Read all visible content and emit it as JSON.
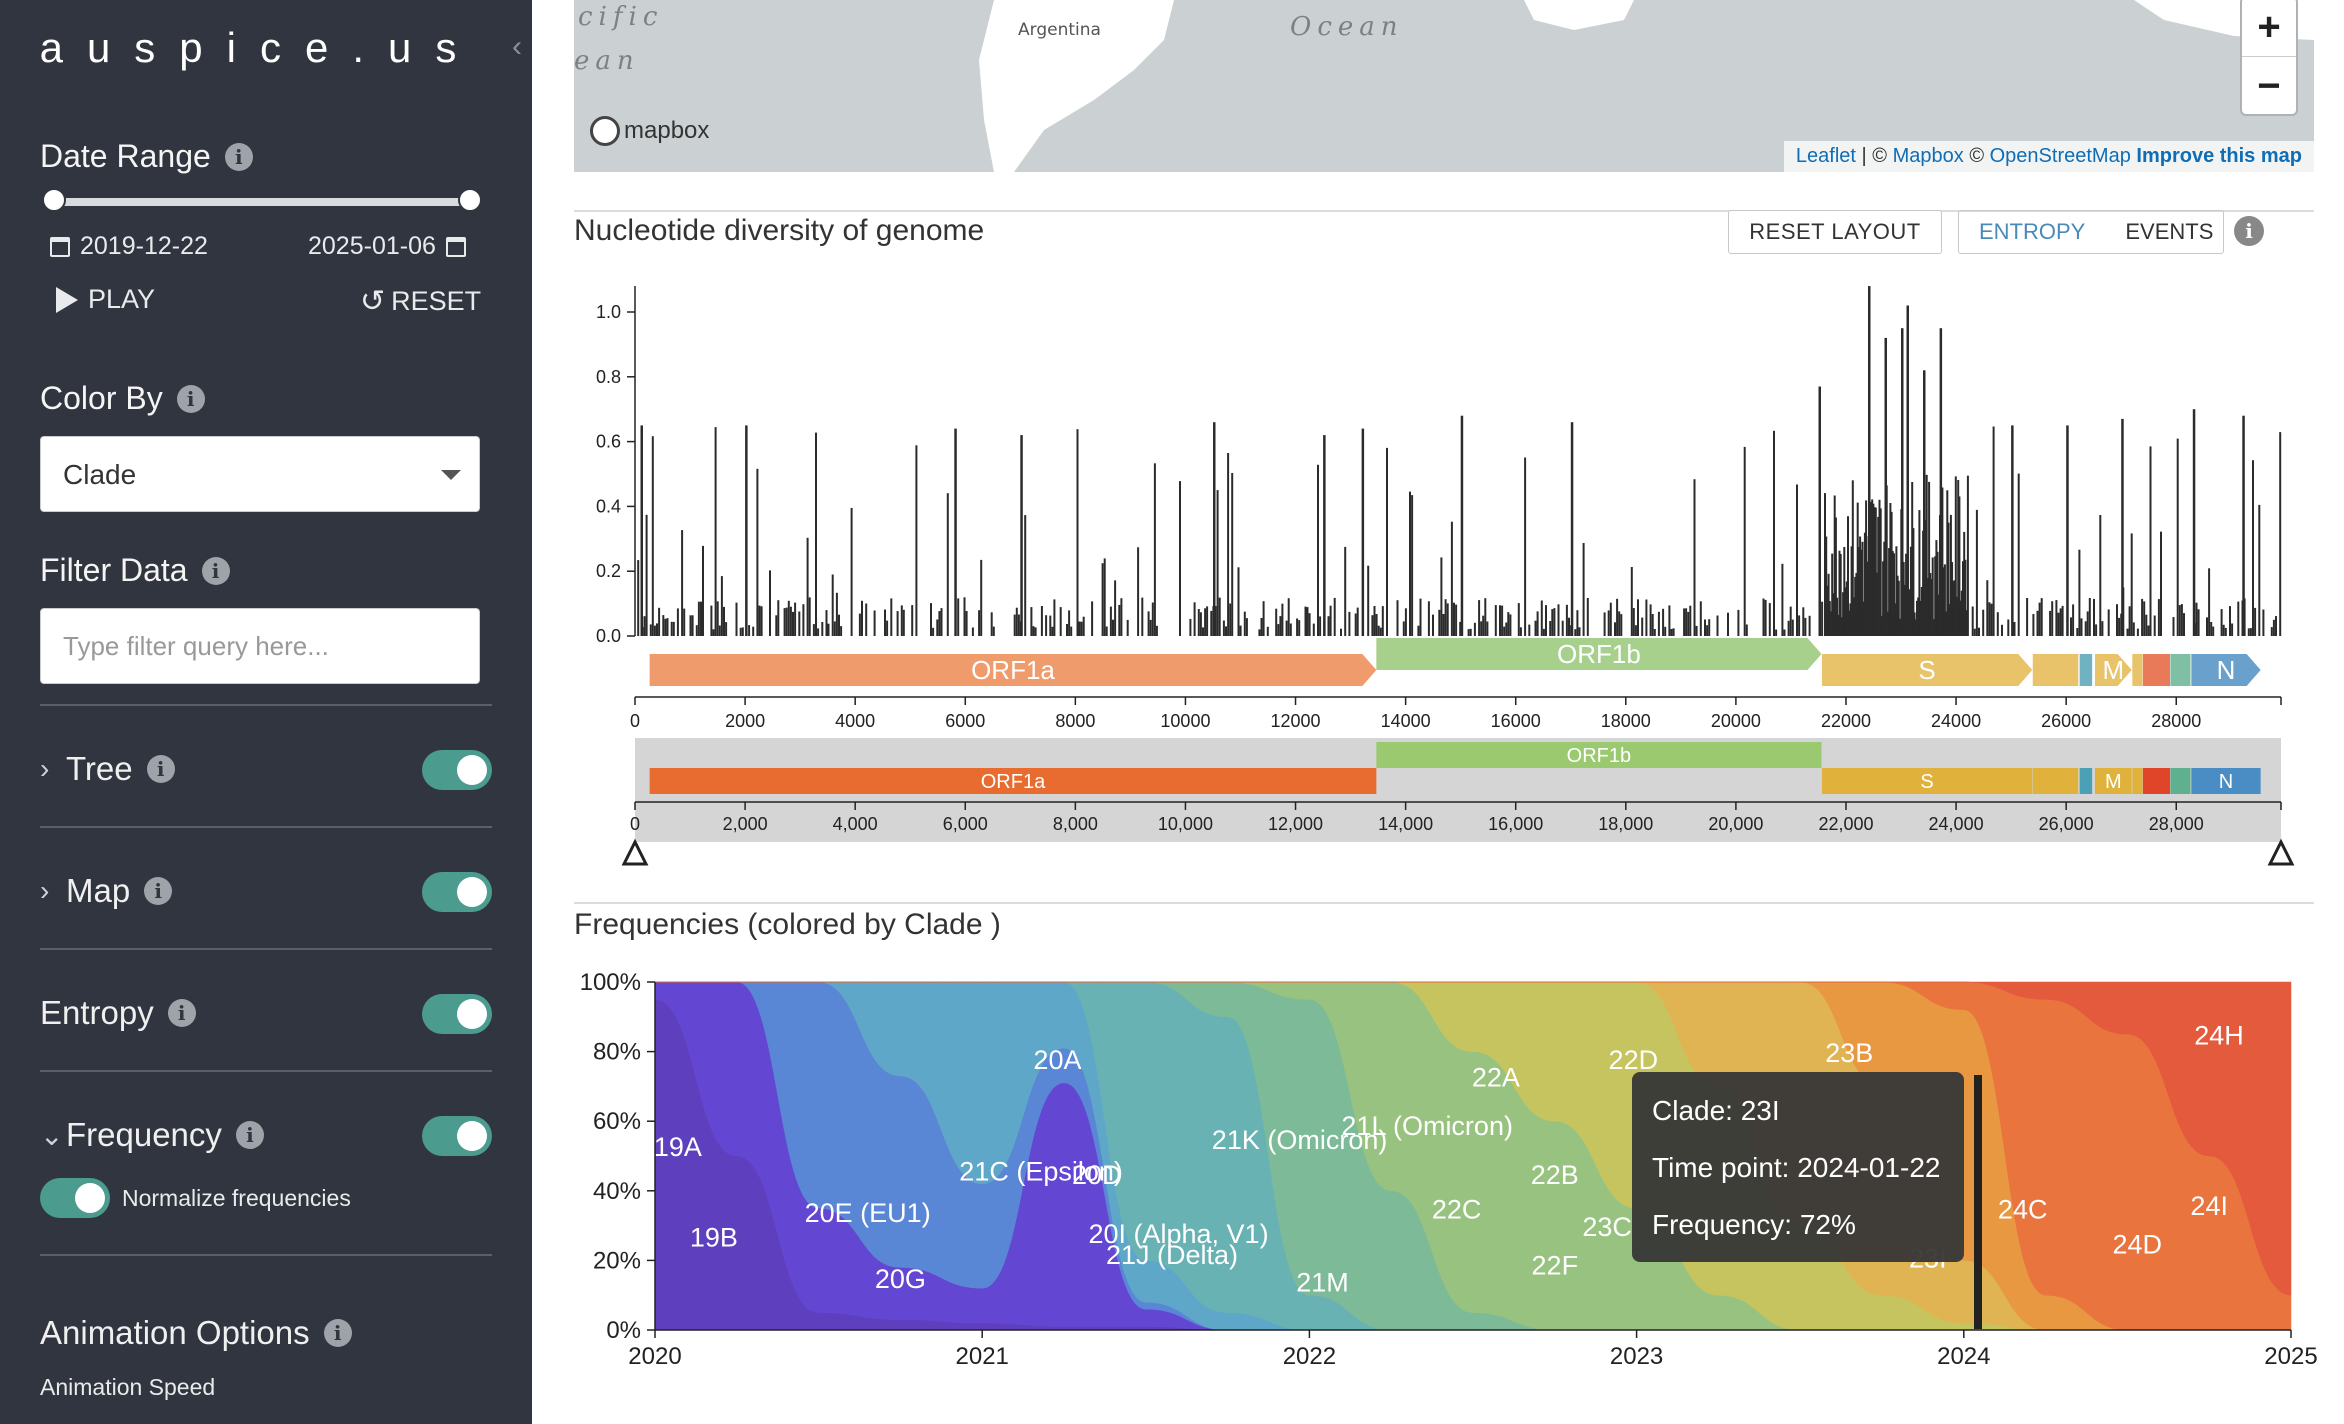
{
  "sidebar": {
    "title": "auspice.us",
    "date_range": {
      "label": "Date Range",
      "start": "2019-12-22",
      "end": "2025-01-06",
      "play_label": "PLAY",
      "reset_label": "RESET"
    },
    "color_by": {
      "label": "Color By",
      "selected": "Clade"
    },
    "filter": {
      "label": "Filter Data",
      "placeholder": "Type filter query here..."
    },
    "panels": [
      {
        "label": "Tree",
        "expanded": false,
        "enabled": true
      },
      {
        "label": "Map",
        "expanded": false,
        "enabled": true
      },
      {
        "label": "Entropy",
        "expanded": false,
        "enabled": true
      },
      {
        "label": "Frequency",
        "expanded": true,
        "enabled": true
      }
    ],
    "normalize_label": "Normalize frequencies",
    "animation": {
      "label": "Animation Options",
      "speed_label": "Animation Speed"
    }
  },
  "map": {
    "labels": {
      "ocean_left_1": "cific",
      "ocean_left_2": "ean",
      "ocean": "Ocean",
      "country": "Argentina"
    },
    "zoom_in": "+",
    "zoom_out": "−",
    "logo": "mapbox",
    "attribution": {
      "leaflet": "Leaflet",
      "sep": "| ©",
      "mapbox": "Mapbox",
      "osm_prefix": "©",
      "osm": "OpenStreetMap",
      "improve": "Improve this map"
    }
  },
  "entropy": {
    "title": "Nucleotide diversity of genome",
    "reset_layout": "RESET LAYOUT",
    "entropy_btn": "ENTROPY",
    "events_btn": "EVENTS",
    "y_ticks": [
      "0.0",
      "0.2",
      "0.4",
      "0.6",
      "0.8",
      "1.0"
    ],
    "x_ticks_top": [
      "0",
      "2000",
      "4000",
      "6000",
      "8000",
      "10000",
      "12000",
      "14000",
      "16000",
      "18000",
      "20000",
      "22000",
      "24000",
      "26000",
      "28000"
    ],
    "x_ticks_bottom": [
      "0",
      "2,000",
      "4,000",
      "6,000",
      "8,000",
      "10,000",
      "12,000",
      "14,000",
      "16,000",
      "18,000",
      "20,000",
      "22,000",
      "24,000",
      "26,000",
      "28,000"
    ],
    "genes": [
      {
        "name": "ORF1a",
        "start": 266,
        "end": 13468,
        "color": "#ef9b6b",
        "color_nav": "#e86c2f"
      },
      {
        "name": "ORF1b",
        "start": 13468,
        "end": 21555,
        "color": "#a8d08d",
        "color_nav": "#9bc96f"
      },
      {
        "name": "S",
        "start": 21563,
        "end": 25384,
        "color": "#e8c36a",
        "color_nav": "#e0b23c"
      },
      {
        "name": "M",
        "start": 26523,
        "end": 27191,
        "color": "#e8c36a",
        "color_nav": "#e0b23c"
      },
      {
        "name": "N",
        "start": 28274,
        "end": 29533,
        "color": "#6aa0cc",
        "color_nav": "#4a8cc4"
      }
    ]
  },
  "frequencies": {
    "title": "Frequencies (colored by Clade )",
    "y_ticks": [
      "0%",
      "20%",
      "40%",
      "60%",
      "80%",
      "100%"
    ],
    "x_ticks": [
      "2020",
      "2021",
      "2022",
      "2023",
      "2024",
      "2025"
    ],
    "clade_labels": [
      "19A",
      "19B",
      "20A",
      "20E (EU1)",
      "20G",
      "21C (Epsilon)",
      "20D",
      "20I (Alpha, V1)",
      "21J (Delta)",
      "21K (Omicron)",
      "21L (Omicron)",
      "21M",
      "22A",
      "22B",
      "22C",
      "22D",
      "22F",
      "23B",
      "23C",
      "23I",
      "24C",
      "24D",
      "24H",
      "24I"
    ],
    "tooltip": {
      "clade": "Clade: 23I",
      "time": "Time point: 2024-01-22",
      "freq": "Frequency: 72%"
    }
  },
  "chart_data": [
    {
      "type": "bar",
      "title": "Nucleotide diversity of genome",
      "xlim": [
        0,
        29903
      ],
      "ylim": [
        0,
        1.05
      ],
      "peaks_x": [
        100,
        2000,
        5800,
        7000,
        10500,
        12500,
        13200,
        15000,
        17000,
        21500,
        22400,
        22700,
        23000,
        23100,
        23400,
        23700,
        25000,
        26000,
        27000,
        28300,
        29200
      ],
      "peaks_y": [
        0.65,
        0.65,
        0.64,
        0.62,
        0.66,
        0.62,
        0.64,
        0.68,
        0.66,
        0.77,
        1.08,
        0.92,
        0.95,
        1.02,
        0.82,
        0.95,
        0.65,
        0.65,
        0.67,
        0.7,
        0.68
      ]
    },
    {
      "type": "area",
      "title": "Frequencies (colored by Clade )",
      "x": [
        2020.0,
        2020.25,
        2020.5,
        2020.75,
        2021.0,
        2021.25,
        2021.5,
        2021.75,
        2022.0,
        2022.25,
        2022.5,
        2022.75,
        2023.0,
        2023.25,
        2023.5,
        2023.75,
        2024.0,
        2024.25,
        2024.5,
        2024.75,
        2025.0
      ],
      "series": [
        {
          "name": "19A",
          "color": "#5e3fbe",
          "values": [
            0.95,
            0.5,
            0.05,
            0.03,
            0.02,
            0.01,
            0.01,
            0.0,
            0.0,
            0.0,
            0.0,
            0.0,
            0.0,
            0.0,
            0.0,
            0.0,
            0.0,
            0.0,
            0.0,
            0.0,
            0.0
          ]
        },
        {
          "name": "20A",
          "color": "#6347d2",
          "values": [
            0.05,
            0.5,
            0.3,
            0.15,
            0.1,
            0.7,
            0.05,
            0.0,
            0.0,
            0.0,
            0.0,
            0.0,
            0.0,
            0.0,
            0.0,
            0.0,
            0.0,
            0.0,
            0.0,
            0.0,
            0.0
          ]
        },
        {
          "name": "20E (EU1)",
          "color": "#5a86d6",
          "values": [
            0.0,
            0.0,
            0.65,
            0.55,
            0.3,
            0.1,
            0.02,
            0.0,
            0.0,
            0.0,
            0.0,
            0.0,
            0.0,
            0.0,
            0.0,
            0.0,
            0.0,
            0.0,
            0.0,
            0.0,
            0.0
          ]
        },
        {
          "name": "20I (Alpha, V1)",
          "color": "#5fa7c9",
          "values": [
            0.0,
            0.0,
            0.0,
            0.27,
            0.58,
            0.19,
            0.12,
            0.05,
            0.0,
            0.0,
            0.0,
            0.0,
            0.0,
            0.0,
            0.0,
            0.0,
            0.0,
            0.0,
            0.0,
            0.0,
            0.0
          ]
        },
        {
          "name": "21J (Delta)",
          "color": "#69b2b4",
          "values": [
            0.0,
            0.0,
            0.0,
            0.0,
            0.0,
            0.0,
            0.8,
            0.85,
            0.1,
            0.0,
            0.0,
            0.0,
            0.0,
            0.0,
            0.0,
            0.0,
            0.0,
            0.0,
            0.0,
            0.0,
            0.0
          ]
        },
        {
          "name": "21K (Omicron)",
          "color": "#7cba98",
          "values": [
            0.0,
            0.0,
            0.0,
            0.0,
            0.0,
            0.0,
            0.0,
            0.1,
            0.85,
            0.4,
            0.05,
            0.0,
            0.0,
            0.0,
            0.0,
            0.0,
            0.0,
            0.0,
            0.0,
            0.0,
            0.0
          ]
        },
        {
          "name": "22A",
          "color": "#98c27f",
          "values": [
            0.0,
            0.0,
            0.0,
            0.0,
            0.0,
            0.0,
            0.0,
            0.0,
            0.05,
            0.6,
            0.75,
            0.6,
            0.35,
            0.1,
            0.0,
            0.0,
            0.0,
            0.0,
            0.0,
            0.0,
            0.0
          ]
        },
        {
          "name": "22D",
          "color": "#c6c45e",
          "values": [
            0.0,
            0.0,
            0.0,
            0.0,
            0.0,
            0.0,
            0.0,
            0.0,
            0.0,
            0.0,
            0.2,
            0.4,
            0.65,
            0.6,
            0.3,
            0.1,
            0.02,
            0.0,
            0.0,
            0.0,
            0.0
          ]
        },
        {
          "name": "23B",
          "color": "#e0b452",
          "values": [
            0.0,
            0.0,
            0.0,
            0.0,
            0.0,
            0.0,
            0.0,
            0.0,
            0.0,
            0.0,
            0.0,
            0.0,
            0.0,
            0.3,
            0.7,
            0.6,
            0.18,
            0.0,
            0.0,
            0.0,
            0.0
          ]
        },
        {
          "name": "23I",
          "color": "#e89840",
          "values": [
            0.0,
            0.0,
            0.0,
            0.0,
            0.0,
            0.0,
            0.0,
            0.0,
            0.0,
            0.0,
            0.0,
            0.0,
            0.0,
            0.0,
            0.0,
            0.3,
            0.72,
            0.1,
            0.0,
            0.0,
            0.0
          ]
        },
        {
          "name": "24C",
          "color": "#e9743e",
          "values": [
            0.0,
            0.0,
            0.0,
            0.0,
            0.0,
            0.0,
            0.0,
            0.0,
            0.0,
            0.0,
            0.0,
            0.0,
            0.0,
            0.0,
            0.0,
            0.0,
            0.08,
            0.85,
            0.85,
            0.5,
            0.1
          ]
        },
        {
          "name": "24H",
          "color": "#e35a3d",
          "values": [
            0.0,
            0.0,
            0.0,
            0.0,
            0.0,
            0.0,
            0.0,
            0.0,
            0.0,
            0.0,
            0.0,
            0.0,
            0.0,
            0.0,
            0.0,
            0.0,
            0.0,
            0.05,
            0.15,
            0.5,
            0.9
          ]
        }
      ],
      "ylim": [
        0,
        1
      ],
      "xlim": [
        2020,
        2025
      ]
    }
  ]
}
